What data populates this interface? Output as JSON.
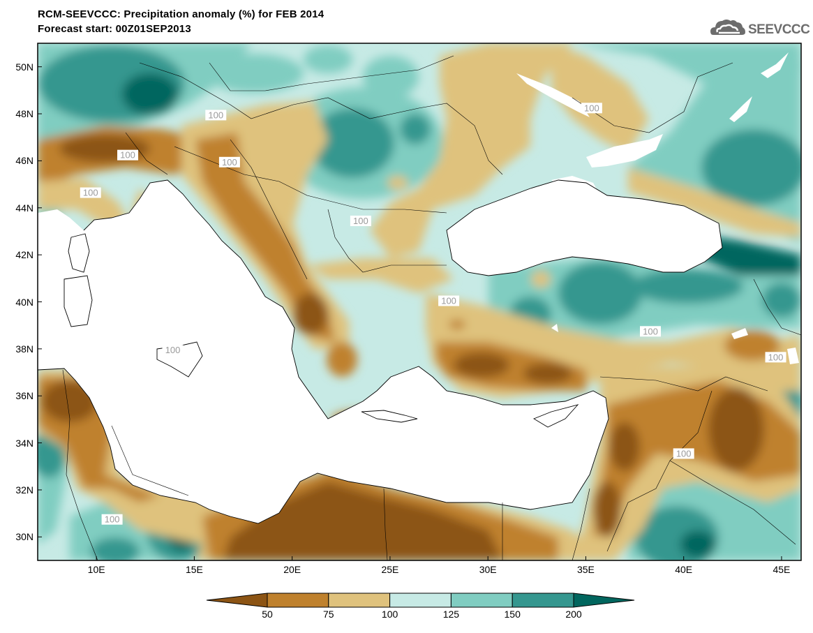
{
  "title_line1": "RCM-SEEVCCC: Precipitation anomaly (%) for FEB 2014",
  "title_line2": "Forecast start: 00Z01SEP2013",
  "logo_text": "SEEVCCC",
  "map": {
    "lon_range": [
      7,
      46
    ],
    "lat_range": [
      29,
      51
    ],
    "lat_ticks": [
      {
        "value": 50,
        "label": "50N"
      },
      {
        "value": 48,
        "label": "48N"
      },
      {
        "value": 46,
        "label": "46N"
      },
      {
        "value": 44,
        "label": "44N"
      },
      {
        "value": 42,
        "label": "42N"
      },
      {
        "value": 40,
        "label": "40N"
      },
      {
        "value": 38,
        "label": "38N"
      },
      {
        "value": 36,
        "label": "36N"
      },
      {
        "value": 34,
        "label": "34N"
      },
      {
        "value": 32,
        "label": "32N"
      },
      {
        "value": 30,
        "label": "30N"
      }
    ],
    "lon_ticks": [
      {
        "value": 10,
        "label": "10E"
      },
      {
        "value": 15,
        "label": "15E"
      },
      {
        "value": 20,
        "label": "20E"
      },
      {
        "value": 25,
        "label": "25E"
      },
      {
        "value": 30,
        "label": "30E"
      },
      {
        "value": 35,
        "label": "35E"
      },
      {
        "value": 40,
        "label": "40E"
      },
      {
        "value": 45,
        "label": "45E"
      }
    ],
    "contour_labels": [
      {
        "text": "100",
        "lon": 16.1,
        "lat": 47.9
      },
      {
        "text": "100",
        "lon": 11.6,
        "lat": 46.2
      },
      {
        "text": "100",
        "lon": 9.7,
        "lat": 44.6
      },
      {
        "text": "100",
        "lon": 16.8,
        "lat": 45.9
      },
      {
        "text": "100",
        "lon": 23.5,
        "lat": 43.4
      },
      {
        "text": "100",
        "lon": 35.3,
        "lat": 48.2
      },
      {
        "text": "100",
        "lon": 28.0,
        "lat": 40.0
      },
      {
        "text": "100",
        "lon": 38.3,
        "lat": 38.7
      },
      {
        "text": "100",
        "lon": 44.7,
        "lat": 37.6
      },
      {
        "text": "100",
        "lon": 13.9,
        "lat": 37.9
      },
      {
        "text": "100",
        "lon": 40.0,
        "lat": 33.5
      },
      {
        "text": "100",
        "lon": 10.8,
        "lat": 30.7
      }
    ]
  },
  "legend": {
    "levels": [
      "50",
      "75",
      "100",
      "125",
      "150",
      "200"
    ],
    "colors": [
      "#8c5414",
      "#bf812d",
      "#dfc27d",
      "#c7eae5",
      "#80cdc1",
      "#35978f",
      "#01665e"
    ]
  }
}
